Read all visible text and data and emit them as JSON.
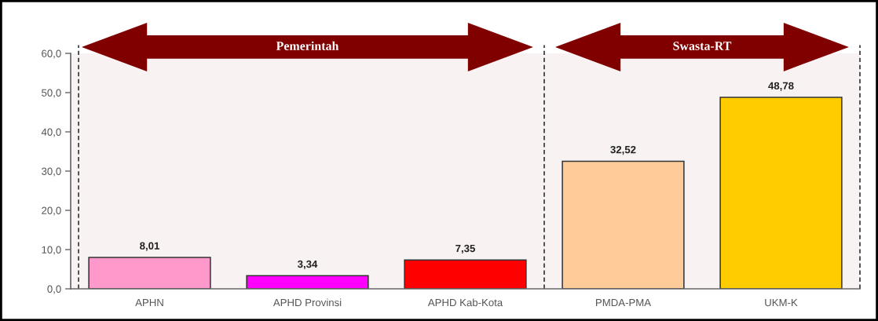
{
  "chart_data": {
    "type": "bar",
    "categories": [
      "APHN",
      "APHD Provinsi",
      "APHD Kab-Kota",
      "PMDA-PMA",
      "UKM-K"
    ],
    "values": [
      8.01,
      3.34,
      7.35,
      32.52,
      48.78
    ],
    "colors": [
      "#ff99cc",
      "#ff00ff",
      "#ff0000",
      "#ffcc99",
      "#ffcc00"
    ],
    "value_labels": [
      "8,01",
      "3,34",
      "7,35",
      "32,52",
      "48,78"
    ],
    "ylim": [
      0,
      60
    ],
    "yticks": [
      {
        "value": 0,
        "label": "0,0"
      },
      {
        "value": 10,
        "label": "10,0"
      },
      {
        "value": 20,
        "label": "20,0"
      },
      {
        "value": 30,
        "label": "30,0"
      },
      {
        "value": 40,
        "label": "40,0"
      },
      {
        "value": 50,
        "label": "50,0"
      },
      {
        "value": 60,
        "label": "60,0"
      }
    ],
    "bands": [
      {
        "axis": "x",
        "from": "APHN",
        "to": "APHD Kab-Kota",
        "label": "Pemerintah",
        "color": "#800000"
      },
      {
        "axis": "x",
        "from": "PMDA-PMA",
        "to": "UKM-K",
        "label": "Swasta-RT",
        "color": "#800000"
      }
    ]
  }
}
